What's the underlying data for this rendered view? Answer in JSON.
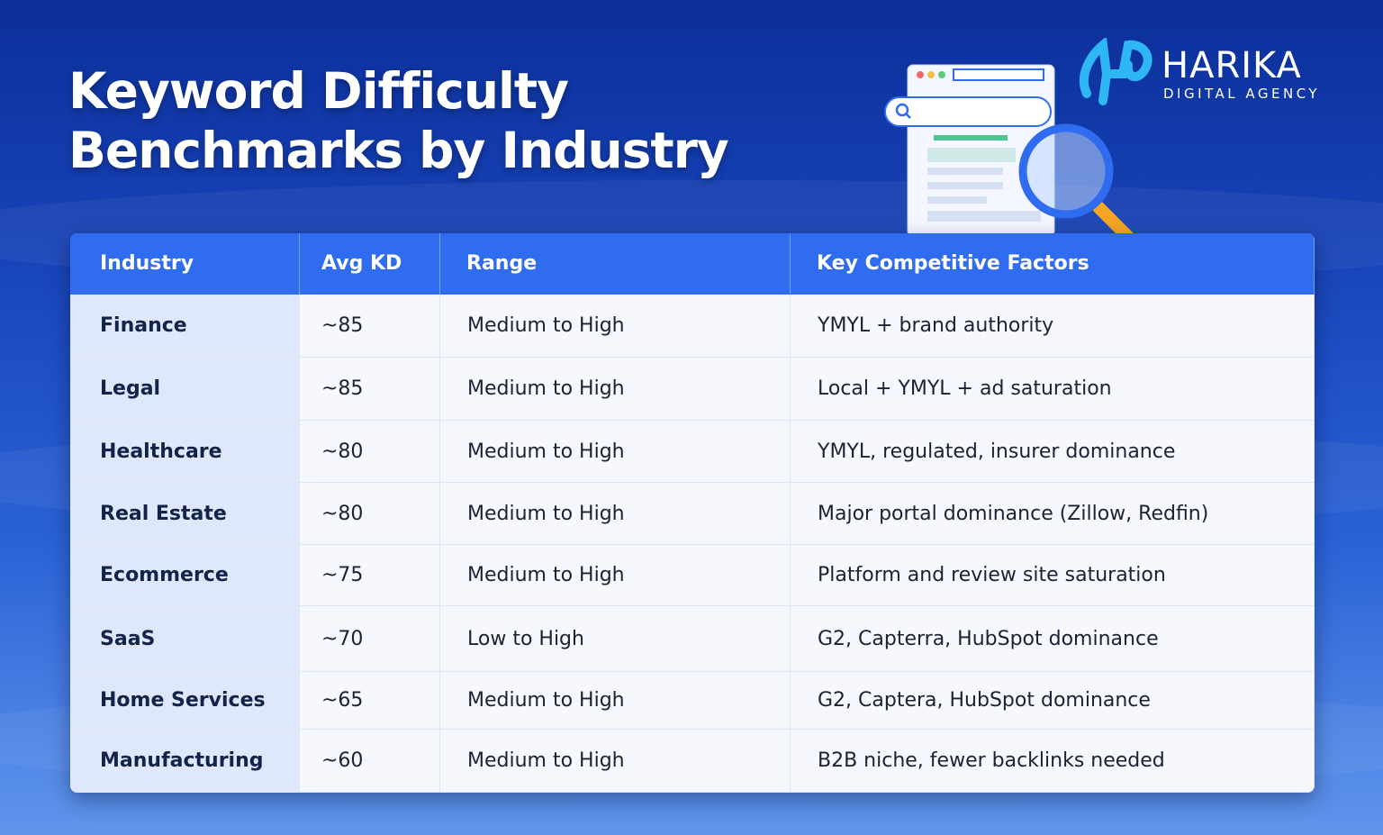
{
  "header": {
    "title_lines": [
      "Keyword Difficulty",
      "Benchmarks by Industry"
    ],
    "logo": {
      "name": "HARIKA",
      "tagline": "DIGITAL AGENCY"
    }
  },
  "table": {
    "columns": [
      "Industry",
      "Avg KD",
      "Range",
      "Key Competitive Factors"
    ],
    "rows": [
      [
        "Finance",
        "~85",
        "Medium to High",
        "YMYL + brand authority"
      ],
      [
        "Legal",
        "~85",
        "Medium to High",
        "Local + YMYL + ad saturation"
      ],
      [
        "Healthcare",
        "~80",
        "Medium to High",
        "YMYL, regulated, insurer dominance"
      ],
      [
        "Real Estate",
        "~80",
        "Medium to High",
        "Major portal dominance (Zillow, Redfin)"
      ],
      [
        "Ecommerce",
        "~75",
        "Medium to High",
        "Platform and review site saturation"
      ],
      [
        "SaaS",
        "~70",
        "Low to High",
        "G2, Capterra, HubSpot dominance"
      ],
      [
        "Home Services",
        "~65",
        "Medium to High",
        "G2, Captera, HubSpot dominance"
      ],
      [
        "Manufacturing",
        "~60",
        "Medium to High",
        "B2B niche, fewer backlinks needed"
      ]
    ]
  }
}
